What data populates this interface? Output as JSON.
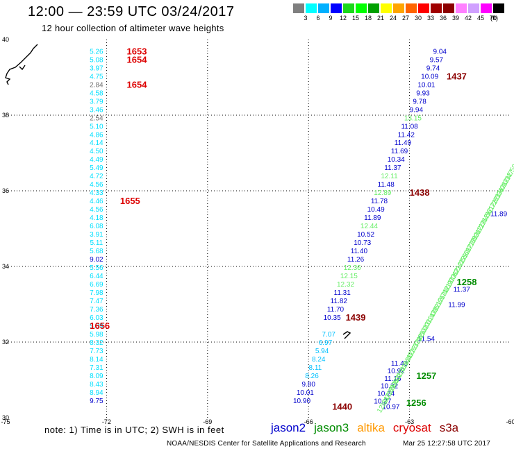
{
  "header": {
    "title": "12:00 — 23:59 UTC 03/24/2017",
    "subtitle": "12 hour collection of altimeter wave heights"
  },
  "colorbar": {
    "colors": [
      "#7f7f7f",
      "#00ffff",
      "#00b0ff",
      "#0000ff",
      "#1ad81a",
      "#00ff00",
      "#00a000",
      "#ffff00",
      "#ffa500",
      "#ff6400",
      "#ff0000",
      "#a00000",
      "#8b0000",
      "#ff80ff",
      "#d0a0ff",
      "#ff00ff",
      "#000000"
    ],
    "labels": [
      "3",
      "6",
      "9",
      "12",
      "15",
      "18",
      "21",
      "24",
      "27",
      "30",
      "33",
      "36",
      "39",
      "42",
      "45",
      "70"
    ],
    "unit": "(ft)"
  },
  "note": "note: 1) Time is in UTC; 2) SWH is in feet",
  "legend": [
    {
      "name": "jason2",
      "color": "#0000cc"
    },
    {
      "name": "jason3",
      "color": "#008c00"
    },
    {
      "name": "altika",
      "color": "#ff9900"
    },
    {
      "name": "cryosat",
      "color": "#dd0000"
    },
    {
      "name": "s3a",
      "color": "#8b0000"
    }
  ],
  "footer": {
    "credit": "NOAA/NESDIS Center for Satellite Applications and Research",
    "timestamp": "Mar 25 12:27:58 UTC 2017"
  },
  "chart_data": {
    "type": "scatter",
    "xlim": [
      -75,
      -60
    ],
    "ylim": [
      30,
      40
    ],
    "xticks": [
      -75,
      -72,
      -69,
      -66,
      -63,
      -60
    ],
    "yticks": [
      30,
      32,
      34,
      36,
      38,
      40
    ],
    "xtick_labels": [
      "-75",
      "-72",
      "-69",
      "-66",
      "-63",
      "-60"
    ],
    "ytick_labels": [
      "30",
      "32",
      "34",
      "36",
      "38",
      "40"
    ],
    "grid": true,
    "series": [
      {
        "name": "cryosat",
        "color": "#dd0000",
        "points": [
          {
            "x": -72.3,
            "y": 39.7,
            "v": "5.26",
            "c": "#00e0ff"
          },
          {
            "x": -72.3,
            "y": 39.48,
            "v": "5.08",
            "c": "#00e0ff"
          },
          {
            "x": -72.3,
            "y": 39.26,
            "v": "3.97",
            "c": "#00e0ff"
          },
          {
            "x": -72.3,
            "y": 39.04,
            "v": "4.75",
            "c": "#00e0ff"
          },
          {
            "x": -72.3,
            "y": 38.82,
            "v": "2.84",
            "c": "#707070"
          },
          {
            "x": -72.3,
            "y": 38.6,
            "v": "4.58",
            "c": "#00e0ff"
          },
          {
            "x": -72.3,
            "y": 38.38,
            "v": "3.79",
            "c": "#00e0ff"
          },
          {
            "x": -72.3,
            "y": 38.16,
            "v": "3.46",
            "c": "#00e0ff"
          },
          {
            "x": -72.3,
            "y": 37.94,
            "v": "2.54",
            "c": "#707070"
          },
          {
            "x": -72.3,
            "y": 37.72,
            "v": "5.10",
            "c": "#00e0ff"
          },
          {
            "x": -72.3,
            "y": 37.5,
            "v": "4.86",
            "c": "#00e0ff"
          },
          {
            "x": -72.3,
            "y": 37.28,
            "v": "4.14",
            "c": "#00e0ff"
          },
          {
            "x": -72.3,
            "y": 37.06,
            "v": "4.50",
            "c": "#00e0ff"
          },
          {
            "x": -72.3,
            "y": 36.84,
            "v": "4.49",
            "c": "#00e0ff"
          },
          {
            "x": -72.3,
            "y": 36.62,
            "v": "5.49",
            "c": "#00e0ff"
          },
          {
            "x": -72.3,
            "y": 36.4,
            "v": "4.72",
            "c": "#00e0ff"
          },
          {
            "x": -72.3,
            "y": 36.18,
            "v": "4.56",
            "c": "#00e0ff"
          },
          {
            "x": -72.3,
            "y": 35.96,
            "v": "4.33",
            "c": "#00e0ff"
          },
          {
            "x": -72.3,
            "y": 35.74,
            "v": "4.46",
            "c": "#00e0ff"
          },
          {
            "x": -72.3,
            "y": 35.52,
            "v": "4.56",
            "c": "#00e0ff"
          },
          {
            "x": -72.3,
            "y": 35.3,
            "v": "4.18",
            "c": "#00e0ff"
          },
          {
            "x": -72.3,
            "y": 35.08,
            "v": "6.08",
            "c": "#00e0ff"
          },
          {
            "x": -72.3,
            "y": 34.86,
            "v": "3.91",
            "c": "#00e0ff"
          },
          {
            "x": -72.3,
            "y": 34.64,
            "v": "5.11",
            "c": "#00e0ff"
          },
          {
            "x": -72.3,
            "y": 34.42,
            "v": "5.68",
            "c": "#00e0ff"
          },
          {
            "x": -72.3,
            "y": 34.2,
            "v": "9.02",
            "c": "#0000cc"
          },
          {
            "x": -72.3,
            "y": 33.98,
            "v": "5.56",
            "c": "#00e0ff"
          },
          {
            "x": -72.3,
            "y": 33.76,
            "v": "6.44",
            "c": "#00e0ff"
          },
          {
            "x": -72.3,
            "y": 33.54,
            "v": "6.69",
            "c": "#00e0ff"
          },
          {
            "x": -72.3,
            "y": 33.32,
            "v": "7.98",
            "c": "#00e0ff"
          },
          {
            "x": -72.3,
            "y": 33.1,
            "v": "7.47",
            "c": "#00e0ff"
          },
          {
            "x": -72.3,
            "y": 32.88,
            "v": "7.36",
            "c": "#00e0ff"
          },
          {
            "x": -72.3,
            "y": 32.66,
            "v": "6.03",
            "c": "#00e0ff"
          },
          {
            "x": -72.3,
            "y": 32.44,
            "v": "5.39",
            "c": "#00e0ff"
          },
          {
            "x": -72.3,
            "y": 32.22,
            "v": "5.98",
            "c": "#00e0ff"
          },
          {
            "x": -72.3,
            "y": 32.0,
            "v": "8.32",
            "c": "#00e0ff"
          },
          {
            "x": -72.3,
            "y": 31.78,
            "v": "7.73",
            "c": "#00e0ff"
          },
          {
            "x": -72.3,
            "y": 31.56,
            "v": "8.14",
            "c": "#00e0ff"
          },
          {
            "x": -72.3,
            "y": 31.34,
            "v": "7.31",
            "c": "#00e0ff"
          },
          {
            "x": -72.3,
            "y": 31.12,
            "v": "8.09",
            "c": "#00e0ff"
          },
          {
            "x": -72.3,
            "y": 30.9,
            "v": "8.43",
            "c": "#00e0ff"
          },
          {
            "x": -72.3,
            "y": 30.68,
            "v": "8.94",
            "c": "#00e0ff"
          },
          {
            "x": -72.3,
            "y": 30.46,
            "v": "9.75",
            "c": "#0000cc"
          }
        ]
      },
      {
        "name": "jason2",
        "color": "#0000cc",
        "points": [
          {
            "x": -62.1,
            "y": 39.7,
            "v": "9.04",
            "c": "#0000cc"
          },
          {
            "x": -62.2,
            "y": 39.48,
            "v": "9.57",
            "c": "#0000cc"
          },
          {
            "x": -62.3,
            "y": 39.26,
            "v": "9.74",
            "c": "#0000cc"
          },
          {
            "x": -62.4,
            "y": 39.04,
            "v": "10.09",
            "c": "#0000cc"
          },
          {
            "x": -62.5,
            "y": 38.82,
            "v": "10.01",
            "c": "#0000cc"
          },
          {
            "x": -62.6,
            "y": 38.6,
            "v": "9.93",
            "c": "#0000cc"
          },
          {
            "x": -62.7,
            "y": 38.38,
            "v": "9.78",
            "c": "#0000cc"
          },
          {
            "x": -62.8,
            "y": 38.16,
            "v": "9.94",
            "c": "#0000cc"
          },
          {
            "x": -62.9,
            "y": 37.94,
            "v": "13.15",
            "c": "#66ee66"
          },
          {
            "x": -63.0,
            "y": 37.72,
            "v": "11.08",
            "c": "#0000cc"
          },
          {
            "x": -63.1,
            "y": 37.5,
            "v": "11.42",
            "c": "#0000cc"
          },
          {
            "x": -63.2,
            "y": 37.28,
            "v": "11.49",
            "c": "#0000cc"
          },
          {
            "x": -63.3,
            "y": 37.06,
            "v": "11.69",
            "c": "#0000cc"
          },
          {
            "x": -63.4,
            "y": 36.84,
            "v": "10.34",
            "c": "#0000cc"
          },
          {
            "x": -63.5,
            "y": 36.62,
            "v": "11.37",
            "c": "#0000cc"
          },
          {
            "x": -63.6,
            "y": 36.4,
            "v": "12.11",
            "c": "#66ee66"
          },
          {
            "x": -63.7,
            "y": 36.18,
            "v": "11.48",
            "c": "#0000cc"
          },
          {
            "x": -63.8,
            "y": 35.96,
            "v": "12.89",
            "c": "#66ee66"
          },
          {
            "x": -63.9,
            "y": 35.74,
            "v": "11.78",
            "c": "#0000cc"
          },
          {
            "x": -64.0,
            "y": 35.52,
            "v": "10.49",
            "c": "#0000cc"
          },
          {
            "x": -64.1,
            "y": 35.3,
            "v": "11.89",
            "c": "#0000cc"
          },
          {
            "x": -64.2,
            "y": 35.08,
            "v": "12.44",
            "c": "#66ee66"
          },
          {
            "x": -64.3,
            "y": 34.86,
            "v": "10.52",
            "c": "#0000cc"
          },
          {
            "x": -64.4,
            "y": 34.64,
            "v": "10.73",
            "c": "#0000cc"
          },
          {
            "x": -64.5,
            "y": 34.42,
            "v": "11.40",
            "c": "#0000cc"
          },
          {
            "x": -64.6,
            "y": 34.2,
            "v": "11.26",
            "c": "#0000cc"
          },
          {
            "x": -64.7,
            "y": 33.98,
            "v": "12.36",
            "c": "#66ee66"
          },
          {
            "x": -64.8,
            "y": 33.76,
            "v": "12.15",
            "c": "#66ee66"
          },
          {
            "x": -64.9,
            "y": 33.54,
            "v": "12.32",
            "c": "#66ee66"
          },
          {
            "x": -65.0,
            "y": 33.32,
            "v": "11.31",
            "c": "#0000cc"
          },
          {
            "x": -65.1,
            "y": 33.1,
            "v": "11.82",
            "c": "#0000cc"
          },
          {
            "x": -65.2,
            "y": 32.88,
            "v": "11.70",
            "c": "#0000cc"
          },
          {
            "x": -65.3,
            "y": 32.66,
            "v": "10.35",
            "c": "#0000cc"
          }
        ]
      },
      {
        "name": "jason2",
        "color": "#0000cc",
        "points": [
          {
            "x": -65.4,
            "y": 32.22,
            "v": "7.07",
            "c": "#00c0ff"
          },
          {
            "x": -65.5,
            "y": 32.0,
            "v": "6.97",
            "c": "#00c0ff"
          },
          {
            "x": -65.6,
            "y": 31.78,
            "v": "5.94",
            "c": "#00c0ff"
          },
          {
            "x": -65.7,
            "y": 31.56,
            "v": "8.24",
            "c": "#00c0ff"
          },
          {
            "x": -65.8,
            "y": 31.34,
            "v": "8.11",
            "c": "#00c0ff"
          },
          {
            "x": -65.9,
            "y": 31.12,
            "v": "8.26",
            "c": "#00c0ff"
          },
          {
            "x": -66.0,
            "y": 30.9,
            "v": "9.80",
            "c": "#0000cc"
          },
          {
            "x": -66.1,
            "y": 30.68,
            "v": "10.01",
            "c": "#0000cc"
          },
          {
            "x": -66.2,
            "y": 30.46,
            "v": "10.90",
            "c": "#0000cc"
          }
        ]
      },
      {
        "name": "jason2",
        "color": "#0000cc",
        "points": [
          {
            "x": -63.3,
            "y": 31.45,
            "v": "11.43",
            "c": "#0000cc"
          },
          {
            "x": -63.4,
            "y": 31.25,
            "v": "10.92",
            "c": "#0000cc"
          },
          {
            "x": -63.5,
            "y": 31.05,
            "v": "11.16",
            "c": "#0000cc"
          },
          {
            "x": -63.6,
            "y": 30.85,
            "v": "10.32",
            "c": "#0000cc"
          },
          {
            "x": -63.7,
            "y": 30.65,
            "v": "10.24",
            "c": "#0000cc"
          },
          {
            "x": -63.8,
            "y": 30.45,
            "v": "10.27",
            "c": "#0000cc"
          },
          {
            "x": -63.55,
            "y": 30.3,
            "v": "10.97",
            "c": "#0000cc"
          }
        ]
      },
      {
        "name": "jason3",
        "color": "#008c00",
        "points": [
          {
            "x": -60.35,
            "y": 35.4,
            "v": "11.89",
            "c": "#0000cc"
          },
          {
            "x": -61.45,
            "y": 33.4,
            "v": "11.37",
            "c": "#0000cc"
          },
          {
            "x": -61.6,
            "y": 33.0,
            "v": "11.99",
            "c": "#0000cc"
          },
          {
            "x": -62.5,
            "y": 32.1,
            "v": "11.54",
            "c": "#0000cc"
          }
        ]
      }
    ],
    "track_labels": [
      {
        "x": -71.1,
        "y": 39.7,
        "text": "1653",
        "color": "#dd0000"
      },
      {
        "x": -71.1,
        "y": 39.48,
        "text": "1654",
        "color": "#dd0000"
      },
      {
        "x": -71.1,
        "y": 38.82,
        "text": "1654",
        "color": "#dd0000"
      },
      {
        "x": -71.3,
        "y": 35.74,
        "text": "1655",
        "color": "#dd0000"
      },
      {
        "x": -72.2,
        "y": 32.44,
        "text": "1656",
        "color": "#dd0000"
      },
      {
        "x": -61.6,
        "y": 39.04,
        "text": "1437",
        "color": "#8b0000"
      },
      {
        "x": -62.7,
        "y": 35.96,
        "text": "1438",
        "color": "#8b0000"
      },
      {
        "x": -64.6,
        "y": 32.66,
        "text": "1439",
        "color": "#8b0000"
      },
      {
        "x": -65.0,
        "y": 30.3,
        "text": "1440",
        "color": "#8b0000"
      },
      {
        "x": -61.3,
        "y": 33.6,
        "text": "1258",
        "color": "#008c00"
      },
      {
        "x": -62.5,
        "y": 31.12,
        "text": "1257",
        "color": "#008c00"
      },
      {
        "x": -62.8,
        "y": 30.4,
        "text": "1256",
        "color": "#008c00"
      }
    ],
    "s3a_track": {
      "x_start": -63.8,
      "y_start": 30.35,
      "x_end": -60.0,
      "y_end": 36.5,
      "values": [
        "12.64",
        "12.71",
        "12.89",
        "12.95",
        "13.02",
        "13.10",
        "13.18",
        "12.44",
        "12.57",
        "12.63",
        "12.79",
        "12.85",
        "12.92",
        "13.03",
        "13.14",
        "12.38",
        "12.51",
        "12.66",
        "12.74",
        "12.81",
        "12.97",
        "13.06",
        "13.21",
        "12.42",
        "12.55",
        "12.68",
        "12.77",
        "12.88",
        "12.99",
        "13.12",
        "12.36",
        "12.49",
        "12.61",
        "12.72",
        "12.83",
        "12.94",
        "13.08",
        "12.33",
        "12.47",
        "12.59"
      ],
      "color": "#66ee66"
    }
  }
}
